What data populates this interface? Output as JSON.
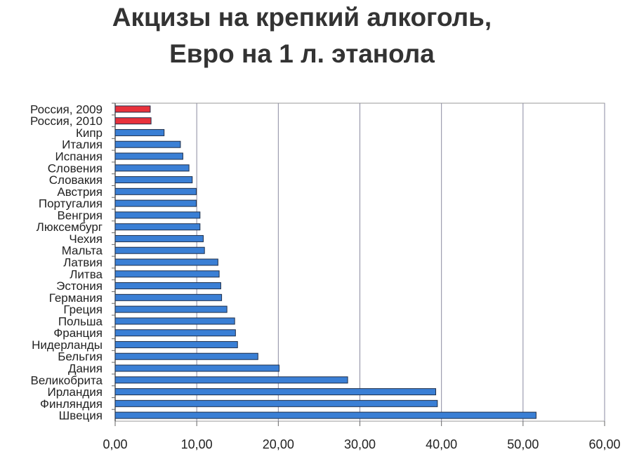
{
  "chart_data": {
    "type": "bar",
    "orientation": "horizontal",
    "title": "Акцизы на крепкий алкоголь,",
    "subtitle": "Евро на 1 л. этанола",
    "categories": [
      "Россия, 2009",
      "Россия, 2010",
      "Кипр",
      "Италия",
      "Испания",
      "Словения",
      "Словакия",
      "Австрия",
      "Португалия",
      "Венгрия",
      "Люксембург",
      "Чехия",
      "Мальта",
      "Латвия",
      "Литва",
      "Эстония",
      "Германия",
      "Греция",
      "Польша",
      "Франция",
      "Нидерланды",
      "Бельгия",
      "Дания",
      "Великобрита",
      "Ирландия",
      "Финляндия",
      "Швеция"
    ],
    "values": [
      4.3,
      4.4,
      6.0,
      8.0,
      8.3,
      9.05,
      9.45,
      9.95,
      9.95,
      10.4,
      10.4,
      10.8,
      10.95,
      12.6,
      12.75,
      12.95,
      13.05,
      13.7,
      14.65,
      14.75,
      15.0,
      17.5,
      20.1,
      28.5,
      39.3,
      39.5,
      51.6
    ],
    "highlight_categories": [
      "Россия, 2009",
      "Россия, 2010"
    ],
    "colors": {
      "default": "#3a7fd5",
      "highlight": "#e8323c",
      "grid": "#8a8aa0"
    },
    "xlim": [
      0,
      60
    ],
    "xticks": [
      "0,00",
      "10,00",
      "20,00",
      "30,00",
      "40,00",
      "50,00",
      "60,00"
    ],
    "grid": true,
    "xlabel": "",
    "ylabel": ""
  }
}
